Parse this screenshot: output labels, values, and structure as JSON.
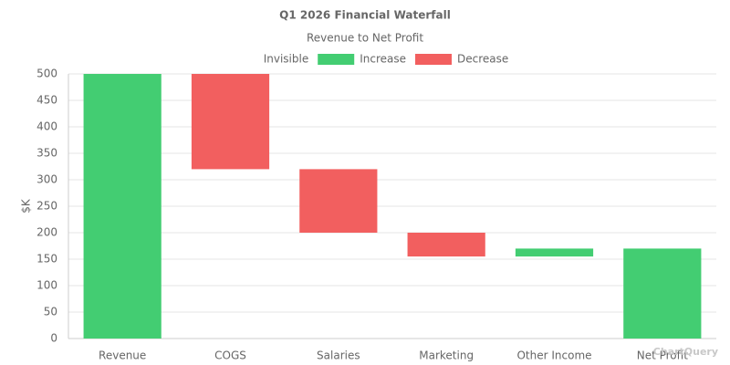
{
  "chart_data": {
    "type": "waterfall",
    "title": "Q1 2026 Financial Waterfall",
    "subtitle": "Revenue to Net Profit",
    "ylabel": "$K",
    "watermark": "ChartQuery",
    "categories": [
      "Revenue",
      "COGS",
      "Salaries",
      "Marketing",
      "Other Income",
      "Net Profit"
    ],
    "series": [
      {
        "name": "Invisible",
        "color": "rgba(0,0,0,0)",
        "values": [
          0,
          320,
          200,
          155,
          155,
          0
        ]
      },
      {
        "name": "Increase",
        "color": "#43cd72",
        "values": [
          500,
          0,
          0,
          0,
          15,
          170
        ]
      },
      {
        "name": "Decrease",
        "color": "#f25f5f",
        "values": [
          0,
          180,
          120,
          45,
          0,
          0
        ]
      }
    ],
    "ylim": [
      0,
      500
    ],
    "yticks": [
      0,
      50,
      100,
      150,
      200,
      250,
      300,
      350,
      400,
      450,
      500
    ],
    "grid": true
  }
}
